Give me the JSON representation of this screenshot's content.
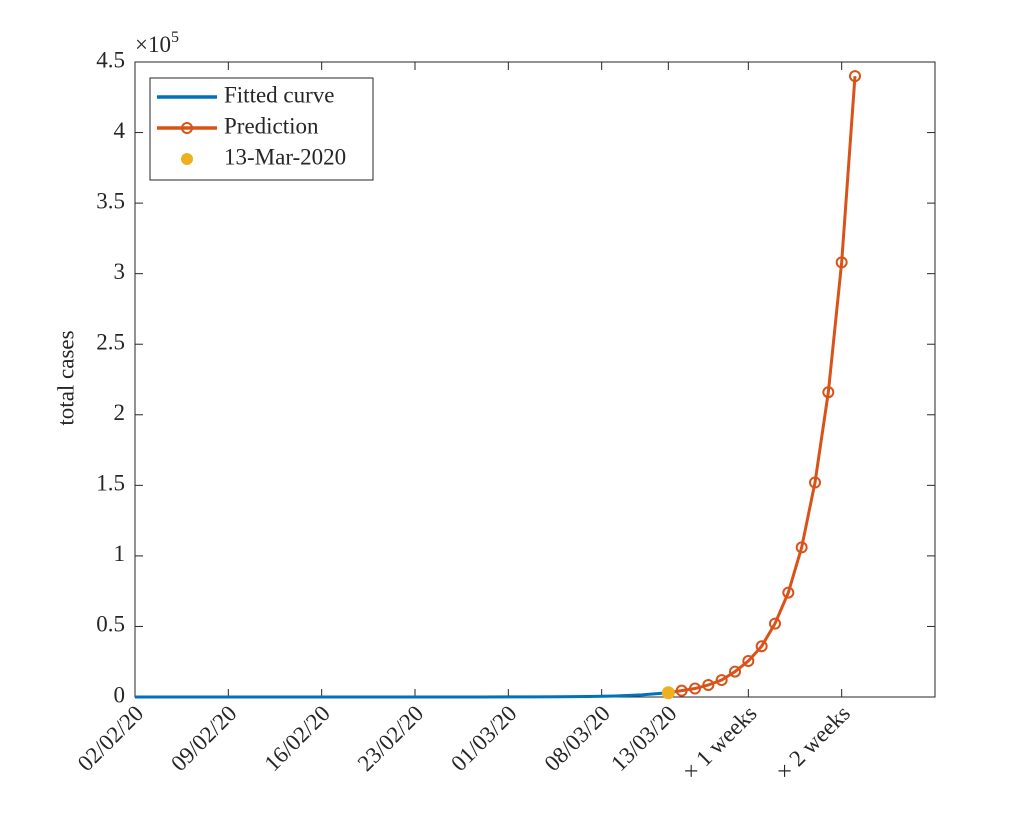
{
  "chart_data": {
    "type": "line",
    "y_label": "total cases",
    "y_multiplier": "×10",
    "y_multiplier_exponent": "5",
    "xlim": [
      0,
      60
    ],
    "xticks": [
      {
        "value": 0,
        "label": "02/02/20"
      },
      {
        "value": 7,
        "label": "09/02/20"
      },
      {
        "value": 14,
        "label": "16/02/20"
      },
      {
        "value": 21,
        "label": "23/02/20"
      },
      {
        "value": 28,
        "label": "01/03/20"
      },
      {
        "value": 35,
        "label": "08/03/20"
      },
      {
        "value": 40,
        "label": "13/03/20"
      },
      {
        "value": 46,
        "label": "× 1 weeks"
      },
      {
        "value": 53,
        "label": "× 2 weeks"
      }
    ],
    "ylim": [
      0,
      4.5
    ],
    "yticks": [
      0,
      0.5,
      1,
      1.5,
      2,
      2.5,
      3,
      3.5,
      4,
      4.5
    ],
    "legend_position": "upper-left",
    "series": [
      {
        "name": "Fitted curve",
        "type": "line",
        "color": "#0072bd",
        "x": [
          0,
          10,
          20,
          24,
          26,
          28,
          30,
          32,
          34,
          36,
          38,
          40
        ],
        "values": [
          0,
          0,
          0,
          0.0001,
          0.0002,
          0.0005,
          0.0009,
          0.0018,
          0.0037,
          0.0074,
          0.0149,
          0.03
        ]
      },
      {
        "name": "Prediction",
        "type": "line-marker",
        "color": "#d95319",
        "x": [
          40,
          41,
          42,
          43,
          44,
          45,
          46,
          47,
          48,
          49,
          50,
          51,
          52,
          53,
          54
        ],
        "values": [
          0.03,
          0.045,
          0.06,
          0.085,
          0.12,
          0.18,
          0.255,
          0.36,
          0.52,
          0.74,
          1.06,
          1.52,
          2.16,
          3.08,
          4.4
        ]
      },
      {
        "name": "13-Mar-2020",
        "type": "scatter",
        "color": "#edb120",
        "x": [
          40
        ],
        "values": [
          0.03
        ]
      }
    ]
  }
}
